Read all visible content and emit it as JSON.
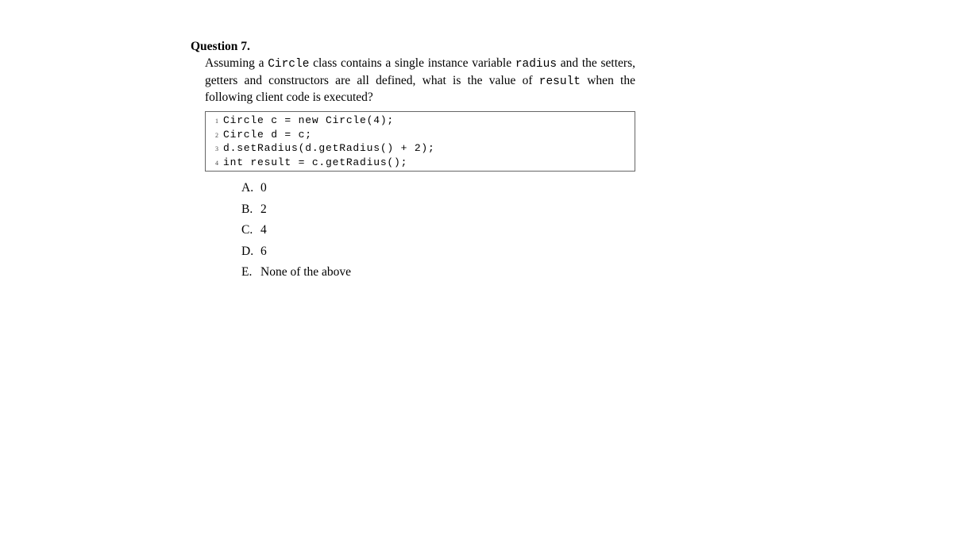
{
  "question": {
    "number": "Question 7.",
    "text_1": "Assuming a ",
    "code_word_1": "Circle",
    "text_2": " class contains a single instance variable ",
    "code_word_2": "radius",
    "text_3": " and the setters, getters and constructors are all defined, what is the value of ",
    "code_word_3": "result",
    "text_4": " when the following client code is executed?"
  },
  "code": {
    "lines": [
      {
        "num": "1",
        "text": "Circle c = new Circle(4);"
      },
      {
        "num": "2",
        "text": "Circle d = c;"
      },
      {
        "num": "3",
        "text": "d.setRadius(d.getRadius() + 2);"
      },
      {
        "num": "4",
        "text": "int result = c.getRadius();"
      }
    ]
  },
  "choices": [
    {
      "label": "A.",
      "text": "0"
    },
    {
      "label": "B.",
      "text": "2"
    },
    {
      "label": "C.",
      "text": "4"
    },
    {
      "label": "D.",
      "text": "6"
    },
    {
      "label": "E.",
      "text": "None of the above"
    }
  ]
}
